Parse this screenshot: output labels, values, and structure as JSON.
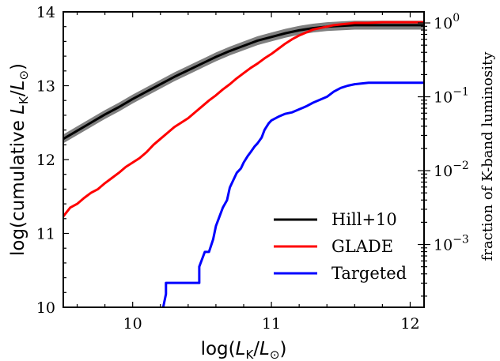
{
  "chart_data": {
    "type": "line",
    "xlabel": "log(L_K/L_⊙)",
    "ylabel": "log(cumulative L_K/L_⊙)",
    "ylabel_right": "fraction of K-band luminosity",
    "xlim": [
      9.5,
      12.1
    ],
    "ylim": [
      10,
      14
    ],
    "x_ticks": [
      10,
      11,
      12
    ],
    "y_ticks": [
      10,
      11,
      12,
      13,
      14
    ],
    "y_right_scale": "log",
    "y_right_ticks": [
      {
        "base": "10",
        "exp": "0",
        "value": 1
      },
      {
        "base": "10",
        "exp": "−1",
        "value": 0.1
      },
      {
        "base": "10",
        "exp": "−2",
        "value": 0.01
      },
      {
        "base": "10",
        "exp": "−3",
        "value": 0.001
      }
    ],
    "y_right_reference_log_total": 13.85,
    "legend_position": "lower-right",
    "grid": false,
    "series": [
      {
        "name": "Hill+10",
        "color": "#000000",
        "band_color": "#808080",
        "band_halfwidth": 0.06,
        "x": [
          9.5,
          9.6,
          9.7,
          9.8,
          9.9,
          10.0,
          10.1,
          10.2,
          10.3,
          10.4,
          10.5,
          10.6,
          10.7,
          10.8,
          10.9,
          11.0,
          11.1,
          11.2,
          11.3,
          11.4,
          11.5,
          11.6,
          11.8,
          12.0,
          12.1
        ],
        "y": [
          12.28,
          12.39,
          12.5,
          12.61,
          12.71,
          12.82,
          12.92,
          13.02,
          13.12,
          13.21,
          13.3,
          13.39,
          13.47,
          13.54,
          13.61,
          13.66,
          13.71,
          13.75,
          13.78,
          13.8,
          13.81,
          13.82,
          13.82,
          13.82,
          13.82
        ]
      },
      {
        "name": "GLADE",
        "color": "#ff0000",
        "x": [
          9.5,
          9.55,
          9.6,
          9.65,
          9.7,
          9.75,
          9.8,
          9.85,
          9.9,
          9.95,
          10.0,
          10.05,
          10.1,
          10.15,
          10.2,
          10.25,
          10.3,
          10.35,
          10.4,
          10.45,
          10.5,
          10.55,
          10.6,
          10.65,
          10.7,
          10.75,
          10.8,
          10.85,
          10.9,
          10.95,
          11.0,
          11.05,
          11.1,
          11.15,
          11.2,
          11.25,
          11.3,
          11.35,
          11.4,
          11.45,
          11.5,
          11.55,
          11.6,
          11.7,
          11.8,
          11.9,
          12.0,
          12.1
        ],
        "y": [
          11.23,
          11.35,
          11.4,
          11.48,
          11.55,
          11.6,
          11.68,
          11.75,
          11.82,
          11.9,
          11.96,
          12.02,
          12.1,
          12.2,
          12.28,
          12.36,
          12.44,
          12.5,
          12.56,
          12.64,
          12.72,
          12.8,
          12.87,
          12.95,
          13.02,
          13.1,
          13.17,
          13.24,
          13.3,
          13.37,
          13.43,
          13.5,
          13.57,
          13.63,
          13.68,
          13.72,
          13.76,
          13.78,
          13.8,
          13.82,
          13.83,
          13.84,
          13.85,
          13.85,
          13.86,
          13.86,
          13.86,
          13.86
        ]
      },
      {
        "name": "Targeted",
        "color": "#0000ff",
        "x": [
          10.22,
          10.24,
          10.24,
          10.48,
          10.48,
          10.52,
          10.55,
          10.58,
          10.6,
          10.62,
          10.65,
          10.68,
          10.7,
          10.72,
          10.75,
          10.78,
          10.8,
          10.83,
          10.85,
          10.88,
          10.9,
          10.93,
          10.95,
          10.98,
          11.0,
          11.05,
          11.1,
          11.15,
          11.2,
          11.25,
          11.3,
          11.35,
          11.4,
          11.45,
          11.5,
          11.55,
          11.6,
          11.7,
          11.8,
          11.9,
          12.0,
          12.1
        ],
        "y": [
          10.0,
          10.18,
          10.33,
          10.33,
          10.55,
          10.75,
          10.75,
          10.92,
          11.1,
          11.2,
          11.35,
          11.45,
          11.62,
          11.7,
          11.82,
          11.88,
          11.96,
          12.05,
          12.1,
          12.18,
          12.22,
          12.3,
          12.4,
          12.49,
          12.53,
          12.58,
          12.62,
          12.64,
          12.68,
          12.72,
          12.77,
          12.81,
          12.85,
          12.92,
          12.97,
          13.0,
          13.02,
          13.04,
          13.04,
          13.04,
          13.04,
          13.04
        ]
      }
    ]
  }
}
